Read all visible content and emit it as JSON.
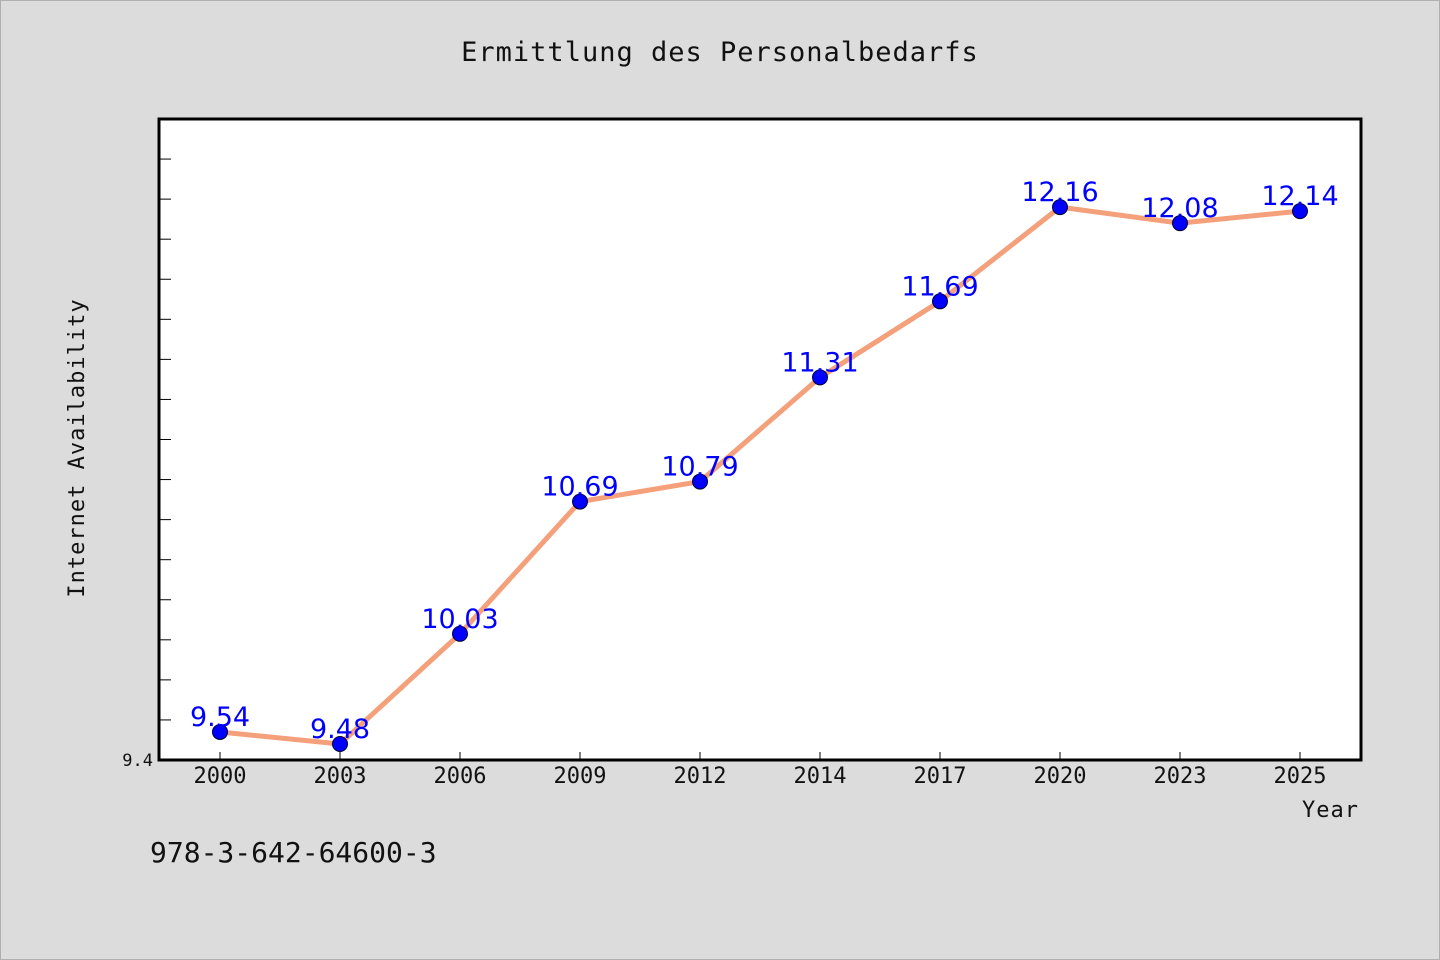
{
  "chart_data": {
    "type": "line",
    "title": "Ermittlung des Personalbedarfs",
    "xlabel": "Year",
    "ylabel": "Internet Availability",
    "categories": [
      "2000",
      "2003",
      "2006",
      "2009",
      "2012",
      "2014",
      "2017",
      "2020",
      "2023",
      "2025"
    ],
    "series": [
      {
        "values": [
          9.54,
          9.48,
          10.03,
          10.69,
          10.79,
          11.31,
          11.69,
          12.16,
          12.08,
          12.14
        ],
        "labels": [
          "9.54",
          "9.48",
          "10.03",
          "10.69",
          "10.79",
          "11.31",
          "11.69",
          "12.16",
          "12.08",
          "12.14"
        ],
        "line_color": "#f4a07a",
        "marker_color": "#0000ff"
      }
    ],
    "ylim": [
      9.4,
      12.6
    ],
    "ytick_labels": [
      "9.4"
    ],
    "grid": false,
    "legend": "none"
  },
  "footnote": "978-3-642-64600-3"
}
